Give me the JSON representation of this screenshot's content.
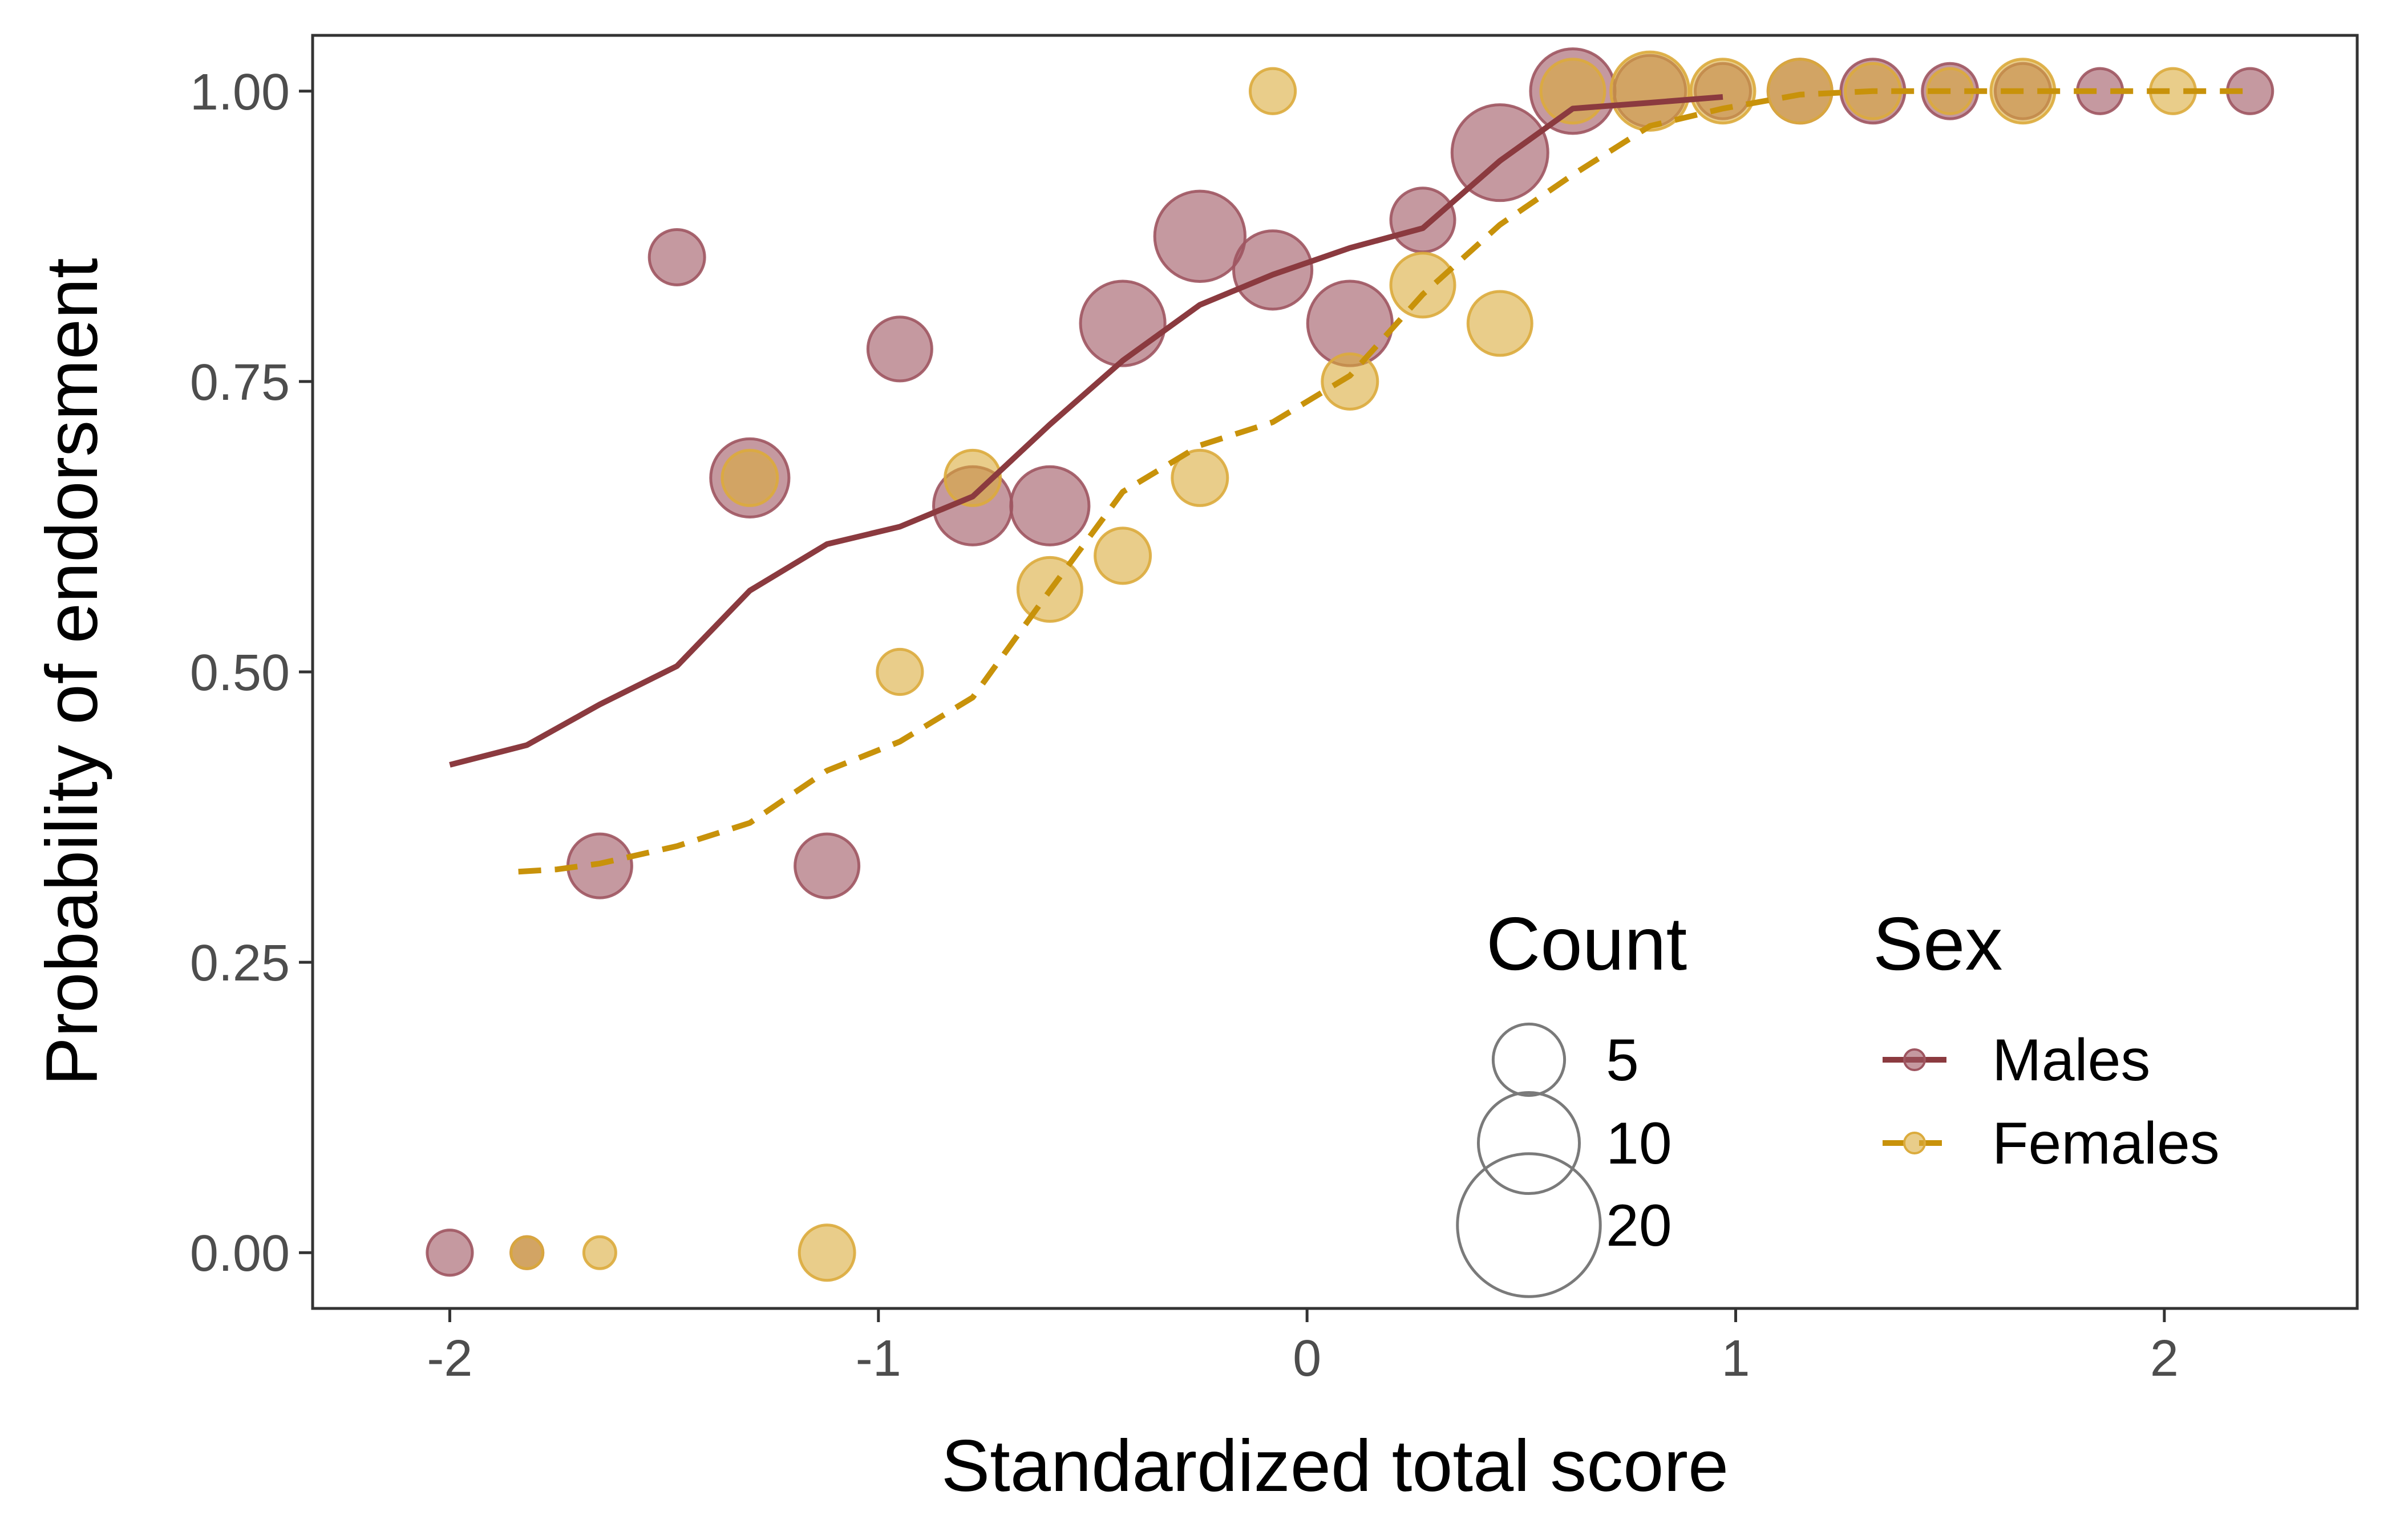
{
  "chart_data": {
    "type": "scatter",
    "title": "",
    "xlabel": "Standardized total score",
    "ylabel": "Probability of endorsment",
    "xlim": [
      -2.32,
      2.45
    ],
    "ylim": [
      -0.048,
      1.048
    ],
    "xticks": [
      -2,
      -1,
      0,
      1,
      2
    ],
    "xtick_labels": [
      "-2",
      "-1",
      "0",
      "1",
      "2"
    ],
    "yticks": [
      0,
      0.25,
      0.5,
      0.75,
      1.0
    ],
    "ytick_labels": [
      "0.00",
      "0.25",
      "0.50",
      "0.75",
      "1.00"
    ],
    "grid": false,
    "size_legend": {
      "title": "Count",
      "entries": [
        {
          "label": "5",
          "count": 5
        },
        {
          "label": "10",
          "count": 10
        },
        {
          "label": "20",
          "count": 20
        }
      ]
    },
    "series_legend": {
      "title": "Sex",
      "entries": [
        {
          "label": "Males",
          "series": 0
        },
        {
          "label": "Females",
          "series": 1
        }
      ]
    },
    "series": [
      {
        "name": "Males",
        "color": "#8B3A3F",
        "point_color": "#9E5560",
        "dash": "solid",
        "curve": {
          "x": [
            -2.0,
            -1.82,
            -1.65,
            -1.47,
            -1.3,
            -1.12,
            -0.95,
            -0.78,
            -0.6,
            -0.43,
            -0.25,
            -0.08,
            0.1,
            0.27,
            0.45,
            0.62,
            0.8,
            0.97
          ],
          "y": [
            0.42,
            0.437,
            0.472,
            0.505,
            0.57,
            0.61,
            0.625,
            0.651,
            0.713,
            0.768,
            0.816,
            0.842,
            0.865,
            0.882,
            0.94,
            0.985,
            0.99,
            0.995
          ]
        },
        "points": [
          {
            "x": -2.0,
            "y": 0.0,
            "count": 2
          },
          {
            "x": -1.82,
            "y": 0.0,
            "count": 1
          },
          {
            "x": -1.65,
            "y": 0.333,
            "count": 4
          },
          {
            "x": -1.47,
            "y": 0.857,
            "count": 3
          },
          {
            "x": -1.3,
            "y": 0.667,
            "count": 6
          },
          {
            "x": -1.12,
            "y": 0.333,
            "count": 4
          },
          {
            "x": -0.95,
            "y": 0.778,
            "count": 4
          },
          {
            "x": -0.78,
            "y": 0.643,
            "count": 6
          },
          {
            "x": -0.6,
            "y": 0.643,
            "count": 6
          },
          {
            "x": -0.43,
            "y": 0.8,
            "count": 7
          },
          {
            "x": -0.25,
            "y": 0.875,
            "count": 8
          },
          {
            "x": -0.08,
            "y": 0.846,
            "count": 6
          },
          {
            "x": 0.1,
            "y": 0.8,
            "count": 7
          },
          {
            "x": 0.27,
            "y": 0.889,
            "count": 4
          },
          {
            "x": 0.45,
            "y": 0.947,
            "count": 9
          },
          {
            "x": 0.62,
            "y": 1.0,
            "count": 7
          },
          {
            "x": 0.8,
            "y": 1.0,
            "count": 5
          },
          {
            "x": 0.97,
            "y": 1.0,
            "count": 3
          },
          {
            "x": 1.15,
            "y": 1.0,
            "count": 4
          },
          {
            "x": 1.32,
            "y": 1.0,
            "count": 4
          },
          {
            "x": 1.5,
            "y": 1.0,
            "count": 3
          },
          {
            "x": 1.67,
            "y": 1.0,
            "count": 3
          },
          {
            "x": 1.85,
            "y": 1.0,
            "count": 2
          },
          {
            "x": 2.2,
            "y": 1.0,
            "count": 2
          }
        ]
      },
      {
        "name": "Females",
        "color": "#C8920A",
        "point_color": "#DBAB3C",
        "dash": "dashed",
        "curve": {
          "x": [
            -1.84,
            -1.75,
            -1.65,
            -1.47,
            -1.3,
            -1.12,
            -0.95,
            -0.78,
            -0.6,
            -0.43,
            -0.25,
            -0.08,
            0.1,
            0.27,
            0.45,
            0.62,
            0.8,
            0.97,
            1.15,
            1.32,
            1.5,
            1.67,
            1.85,
            2.02,
            2.2
          ],
          "y": [
            0.328,
            0.33,
            0.335,
            0.35,
            0.37,
            0.415,
            0.44,
            0.478,
            0.57,
            0.655,
            0.695,
            0.715,
            0.755,
            0.825,
            0.885,
            0.928,
            0.97,
            0.985,
            0.997,
            1.0,
            1.0,
            1.0,
            1.0,
            1.0,
            1.0
          ]
        },
        "points": [
          {
            "x": -1.82,
            "y": 0.0,
            "count": 1
          },
          {
            "x": -1.65,
            "y": 0.0,
            "count": 1
          },
          {
            "x": -1.3,
            "y": 0.667,
            "count": 3
          },
          {
            "x": -1.12,
            "y": 0.0,
            "count": 3
          },
          {
            "x": -0.95,
            "y": 0.5,
            "count": 2
          },
          {
            "x": -0.78,
            "y": 0.667,
            "count": 3
          },
          {
            "x": -0.6,
            "y": 0.571,
            "count": 4
          },
          {
            "x": -0.43,
            "y": 0.6,
            "count": 3
          },
          {
            "x": -0.25,
            "y": 0.667,
            "count": 3
          },
          {
            "x": -0.08,
            "y": 1.0,
            "count": 2
          },
          {
            "x": 0.1,
            "y": 0.75,
            "count": 3
          },
          {
            "x": 0.27,
            "y": 0.833,
            "count": 4
          },
          {
            "x": 0.45,
            "y": 0.8,
            "count": 4
          },
          {
            "x": 0.62,
            "y": 1.0,
            "count": 4
          },
          {
            "x": 0.8,
            "y": 1.0,
            "count": 6
          },
          {
            "x": 0.97,
            "y": 1.0,
            "count": 4
          },
          {
            "x": 1.15,
            "y": 1.0,
            "count": 4
          },
          {
            "x": 1.32,
            "y": 1.0,
            "count": 3
          },
          {
            "x": 1.5,
            "y": 1.0,
            "count": 2
          },
          {
            "x": 1.67,
            "y": 1.0,
            "count": 4
          },
          {
            "x": 2.02,
            "y": 1.0,
            "count": 2
          }
        ]
      }
    ]
  }
}
